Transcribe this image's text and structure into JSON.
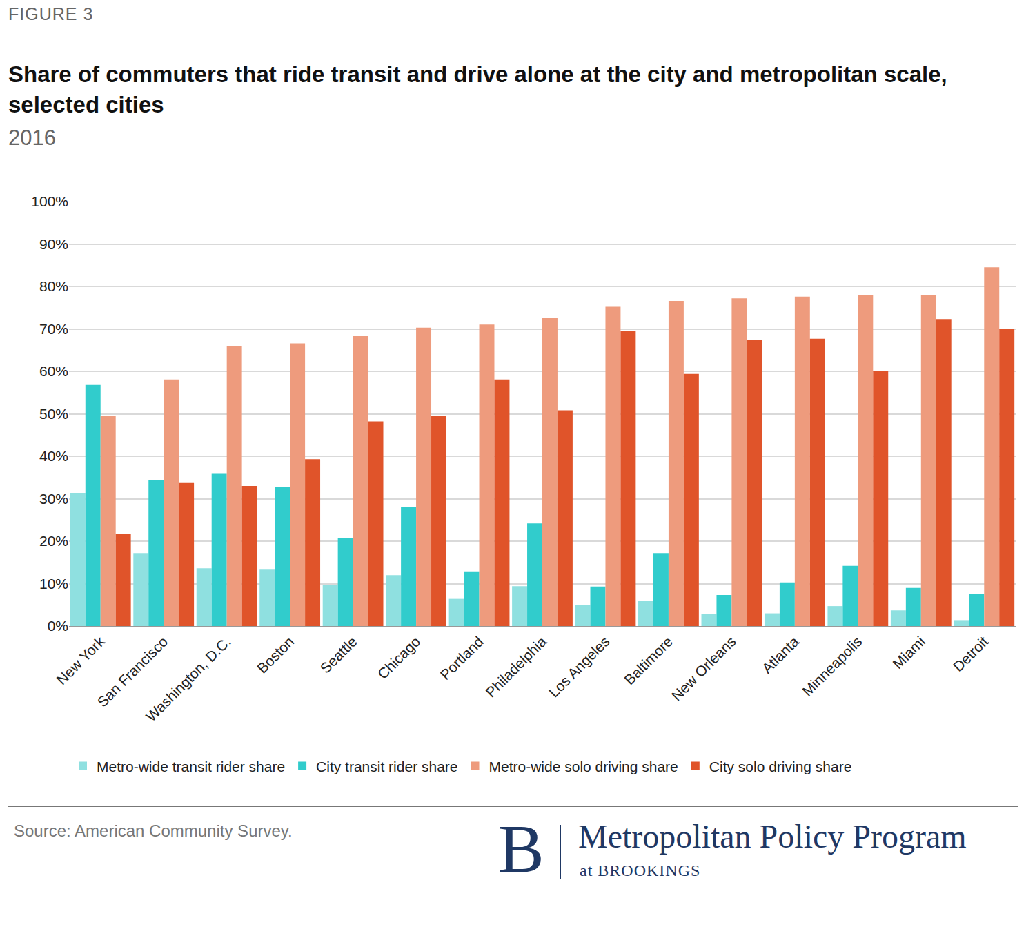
{
  "chart_data": {
    "type": "bar",
    "figure_label": "FIGURE 3",
    "title": "Share of commuters that ride transit and drive alone at the city and metropolitan scale, selected cities",
    "subtitle": "2016",
    "source": "Source: American Community Survey.",
    "logo": {
      "letter": "B",
      "name": "Metropolitan Policy Program",
      "sub": "at BROOKINGS"
    },
    "categories": [
      "New York",
      "San Francisco",
      "Washington, D.C.",
      "Boston",
      "Seattle",
      "Chicago",
      "Portland",
      "Philadelphia",
      "Los Angeles",
      "Baltimore",
      "New Orleans",
      "Atlanta",
      "Minneapolis",
      "Miami",
      "Detroit"
    ],
    "series": [
      {
        "name": "Metro-wide transit rider share",
        "color": "#8fe0e0",
        "values": [
          31.4,
          17.2,
          13.6,
          13.3,
          9.7,
          12.0,
          6.4,
          9.4,
          5.0,
          6.0,
          2.8,
          3.0,
          4.7,
          3.7,
          1.4
        ]
      },
      {
        "name": "City transit rider share",
        "color": "#31cccc",
        "values": [
          56.8,
          34.4,
          36.0,
          32.7,
          20.8,
          28.1,
          12.9,
          24.2,
          9.3,
          17.2,
          7.3,
          10.3,
          14.2,
          9.0,
          7.6
        ]
      },
      {
        "name": "Metro-wide solo driving share",
        "color": "#ee9b7d",
        "values": [
          49.5,
          58.1,
          66.0,
          66.6,
          68.3,
          70.3,
          71.0,
          72.6,
          75.2,
          76.6,
          77.2,
          77.6,
          77.9,
          77.9,
          84.5
        ]
      },
      {
        "name": "City solo driving share",
        "color": "#e0542a",
        "values": [
          21.8,
          33.7,
          33.0,
          39.3,
          48.2,
          49.5,
          58.1,
          50.8,
          69.6,
          59.4,
          67.3,
          67.7,
          60.1,
          72.3,
          70.0
        ]
      }
    ],
    "ylim": [
      0,
      100
    ],
    "yticks": [
      {
        "value": 0,
        "label": "0%"
      },
      {
        "value": 10,
        "label": "10%"
      },
      {
        "value": 20,
        "label": "20%"
      },
      {
        "value": 30,
        "label": "30%"
      },
      {
        "value": 40,
        "label": "40%"
      },
      {
        "value": 50,
        "label": "50%"
      },
      {
        "value": 60,
        "label": "60%"
      },
      {
        "value": 70,
        "label": "70%"
      },
      {
        "value": 80,
        "label": "80%"
      },
      {
        "value": 90,
        "label": "90%"
      },
      {
        "value": 100,
        "label": "100%"
      }
    ],
    "grid": true,
    "legend": "bottom"
  }
}
